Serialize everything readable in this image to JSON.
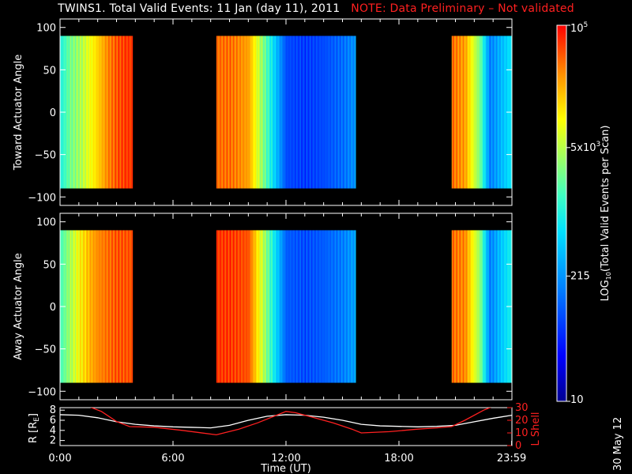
{
  "title": {
    "main": "TWINS1. Total Valid Events: 11 Jan (day  11), 2011",
    "note": "NOTE: Data Preliminary – Not validated",
    "note_color": "#ff2020"
  },
  "side_date": "30 May 12",
  "chart_data": [
    {
      "type": "heatmap",
      "panel": "toward",
      "ylabel": "Toward Actuator Angle",
      "ylim": [
        -110,
        110
      ],
      "yticks": [
        100,
        50,
        0,
        -50,
        -100
      ],
      "ytick_labels": [
        "100",
        "50",
        "0",
        "−50",
        "−100"
      ],
      "xlim_hours": [
        0,
        24
      ],
      "data_angle_range": [
        -90,
        90
      ],
      "data_intervals_hours": [
        [
          0.0,
          3.85
        ],
        [
          8.3,
          15.7
        ],
        [
          20.8,
          24.0
        ]
      ],
      "color_scale": "log10, 10 to 100000",
      "representative_log10_by_hour": [
        [
          0.0,
          3.0
        ],
        [
          0.5,
          3.4
        ],
        [
          1.0,
          3.6
        ],
        [
          1.5,
          3.9
        ],
        [
          2.0,
          4.2
        ],
        [
          2.5,
          4.5
        ],
        [
          3.0,
          4.7
        ],
        [
          3.5,
          4.8
        ],
        [
          8.3,
          4.6
        ],
        [
          9.0,
          4.6
        ],
        [
          10.0,
          4.4
        ],
        [
          11.0,
          3.2
        ],
        [
          12.0,
          1.9
        ],
        [
          13.0,
          1.8
        ],
        [
          14.0,
          1.9
        ],
        [
          15.0,
          2.1
        ],
        [
          15.6,
          2.3
        ],
        [
          20.8,
          4.6
        ],
        [
          21.5,
          4.4
        ],
        [
          22.3,
          3.4
        ],
        [
          22.8,
          2.2
        ],
        [
          23.5,
          2.6
        ],
        [
          24.0,
          2.9
        ]
      ]
    },
    {
      "type": "heatmap",
      "panel": "away",
      "ylabel": "Away Actuator Angle",
      "ylim": [
        -110,
        110
      ],
      "yticks": [
        100,
        50,
        0,
        -50,
        -100
      ],
      "ytick_labels": [
        "100",
        "50",
        "0",
        "−50",
        "−100"
      ],
      "xlim_hours": [
        0,
        24
      ],
      "data_angle_range": [
        -90,
        90
      ],
      "data_intervals_hours": [
        [
          0.0,
          3.85
        ],
        [
          8.3,
          15.7
        ],
        [
          20.8,
          24.0
        ]
      ],
      "color_scale": "log10, 10 to 100000",
      "representative_log10_by_hour": [
        [
          0.0,
          3.2
        ],
        [
          0.5,
          3.6
        ],
        [
          1.0,
          4.0
        ],
        [
          1.5,
          4.3
        ],
        [
          2.0,
          4.5
        ],
        [
          2.5,
          4.6
        ],
        [
          3.0,
          4.7
        ],
        [
          3.5,
          4.7
        ],
        [
          8.3,
          4.8
        ],
        [
          9.0,
          4.8
        ],
        [
          10.0,
          4.7
        ],
        [
          11.0,
          3.4
        ],
        [
          12.0,
          2.0
        ],
        [
          13.0,
          1.9
        ],
        [
          14.0,
          2.0
        ],
        [
          15.0,
          2.2
        ],
        [
          15.6,
          2.4
        ],
        [
          20.8,
          4.6
        ],
        [
          21.5,
          4.5
        ],
        [
          22.3,
          3.5
        ],
        [
          22.8,
          2.2
        ],
        [
          23.5,
          2.7
        ],
        [
          24.0,
          3.0
        ]
      ]
    },
    {
      "type": "line",
      "panel": "orbit",
      "ylabel": "R [R",
      "ylabel_sub": "E",
      "ylabel_end": "]",
      "ylim": [
        1,
        8.5
      ],
      "yticks": [
        2,
        4,
        6,
        8
      ],
      "ytick_labels": [
        "2",
        "4",
        "6",
        "8"
      ],
      "y2label": "L Shell",
      "y2lim": [
        0,
        30
      ],
      "y2ticks": [
        0,
        10,
        20,
        30
      ],
      "y2tick_labels": [
        "0",
        "10",
        "20",
        "30"
      ],
      "xlabel": "Time (UT)",
      "xticks_hours": [
        0,
        6,
        12,
        18,
        23.983
      ],
      "xtick_labels": [
        "0:00",
        "6:00",
        "12:00",
        "18:00",
        "23:59"
      ],
      "series": [
        {
          "axis": "left",
          "color": "#ffffff",
          "x": [
            0,
            1,
            2,
            3,
            4,
            5,
            6,
            7,
            8,
            9,
            10,
            11,
            12,
            13,
            14,
            15,
            16,
            17,
            18,
            19,
            20,
            21,
            22,
            23,
            24
          ],
          "y": [
            7.1,
            7.0,
            6.5,
            5.7,
            5.2,
            4.9,
            4.7,
            4.6,
            4.5,
            5.0,
            6.0,
            6.8,
            7.1,
            7.0,
            6.6,
            6.0,
            5.2,
            4.9,
            4.8,
            4.7,
            4.8,
            5.0,
            5.7,
            6.4,
            7.0
          ]
        },
        {
          "axis": "right",
          "color": "#ff2020",
          "x": [
            1.5,
            2.2,
            3.0,
            3.7,
            5.0,
            6.5,
            8.3,
            9.5,
            10.5,
            11.5,
            12.0,
            12.5,
            13.5,
            14.5,
            15.5,
            16.0,
            17.5,
            19.0,
            20.0,
            20.8,
            21.5,
            22.5,
            23.0
          ],
          "y": [
            31,
            27,
            19,
            15,
            14.5,
            12,
            8.5,
            13,
            18,
            24,
            27,
            26,
            22,
            18,
            13,
            10,
            11,
            13,
            14,
            15,
            20,
            28,
            31
          ]
        }
      ]
    }
  ],
  "colorbar": {
    "label_pre": "LOG",
    "label_sub": "10",
    "label_post": "(Total Valid Events per Scan)",
    "tick_labels": [
      "10",
      "215",
      "5x10",
      "10"
    ],
    "tick_sup": [
      "",
      "",
      "3",
      "5"
    ],
    "tick_values_log10": [
      1,
      2.3324,
      3.699,
      5
    ],
    "range_log10": [
      1,
      5
    ]
  }
}
